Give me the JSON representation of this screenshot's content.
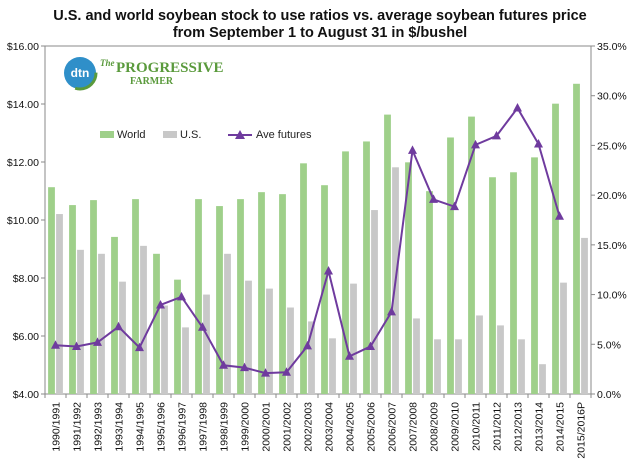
{
  "chart_data": {
    "type": "bar",
    "title": "U.S. and world soybean stock to use ratios vs. average soybean futures price",
    "subtitle": "from September 1 to August 31 in $/bushel",
    "categories": [
      "1990/1991",
      "1991/1992",
      "1992/1993",
      "1993/1994",
      "1994/1995",
      "1995/1996",
      "1996/1997",
      "1997/1998",
      "1998/1999",
      "1999/2000",
      "2000/2001",
      "2001/2002",
      "2002/2003",
      "2003/2004",
      "2004/2005",
      "2005/2006",
      "2006/2007",
      "2007/2008",
      "2008/2009",
      "2009/2010",
      "2010/2011",
      "2011/2012",
      "2012/2013",
      "2013/2014",
      "2014/2015",
      "2015/2016P"
    ],
    "series": [
      {
        "name": "World",
        "type": "bar",
        "axis": "right",
        "color": "#9fd08a",
        "values": [
          20.8,
          19.0,
          19.5,
          15.8,
          19.6,
          14.1,
          11.5,
          19.6,
          18.9,
          19.6,
          20.3,
          20.1,
          23.2,
          21.0,
          24.4,
          25.4,
          28.1,
          23.3,
          20.4,
          25.8,
          27.9,
          21.8,
          22.3,
          23.8,
          29.2,
          31.2
        ]
      },
      {
        "name": "U.S.",
        "type": "bar",
        "axis": "right",
        "color": "#c8c8c8",
        "values": [
          18.1,
          14.5,
          14.1,
          11.3,
          14.9,
          8.9,
          6.7,
          10.0,
          14.1,
          11.4,
          10.6,
          8.7,
          7.3,
          5.6,
          11.1,
          18.5,
          22.8,
          7.6,
          5.5,
          5.5,
          7.9,
          6.9,
          5.5,
          3.0,
          11.2,
          15.7
        ]
      },
      {
        "name": "Ave futures",
        "type": "line",
        "axis": "left",
        "color": "#6f3b9e",
        "values": [
          5.68,
          5.64,
          5.78,
          6.32,
          5.6,
          7.07,
          7.35,
          6.3,
          4.99,
          4.91,
          4.72,
          4.75,
          5.66,
          8.24,
          5.3,
          5.64,
          6.83,
          12.4,
          10.71,
          10.46,
          12.59,
          12.9,
          13.86,
          12.62,
          10.13,
          null
        ]
      }
    ],
    "left_axis": {
      "min": 4,
      "max": 16,
      "step": 2,
      "format": "dollar",
      "ticks": [
        "$4.00",
        "$6.00",
        "$8.00",
        "$10.00",
        "$12.00",
        "$14.00",
        "$16.00"
      ]
    },
    "right_axis": {
      "min": 0,
      "max": 35,
      "step": 5,
      "format": "percent",
      "ticks": [
        "0.0%",
        "5.0%",
        "10.0%",
        "15.0%",
        "20.0%",
        "25.0%",
        "30.0%",
        "35.0%"
      ]
    },
    "legend": {
      "placement": "upper-left",
      "items": [
        "World",
        "U.S.",
        "Ave futures"
      ]
    },
    "grid": false
  },
  "logo": {
    "mark": "dtn",
    "line1": "The",
    "line2": "PROGRESSIVE",
    "line3": "FARMER"
  },
  "colors": {
    "world": "#9fd08a",
    "us": "#c8c8c8",
    "futures": "#6f3b9e",
    "logo": "#5a9a3c",
    "logo_mark": "#2f8fc9"
  }
}
